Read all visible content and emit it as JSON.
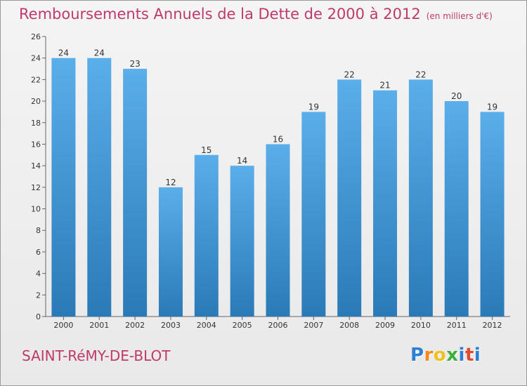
{
  "header": {
    "title": "Remboursements Annuels de la Dette de 2000 à 2012",
    "subtitle": "(en milliers d'€)"
  },
  "footer": {
    "commune": "SAINT-RéMY-DE-BLOT",
    "logo_letters": [
      "P",
      "r",
      "o",
      "x",
      "i",
      "t",
      "i"
    ],
    "logo_colors": [
      "#2f7fd0",
      "#f28a1e",
      "#f0c020",
      "#3fae3a",
      "#2f7fd0",
      "#e24a30",
      "#2f7fd0"
    ]
  },
  "chart_data": {
    "type": "bar",
    "title": "Remboursements Annuels de la Dette de 2000 à 2012",
    "subtitle": "(en milliers d'€)",
    "categories": [
      "2000",
      "2001",
      "2002",
      "2003",
      "2004",
      "2005",
      "2006",
      "2007",
      "2008",
      "2009",
      "2010",
      "2011",
      "2012"
    ],
    "values": [
      24,
      24,
      23,
      12,
      15,
      14,
      16,
      19,
      22,
      21,
      22,
      20,
      19
    ],
    "ylim": [
      0,
      26
    ],
    "yticks": [
      0,
      2,
      4,
      6,
      8,
      10,
      12,
      14,
      16,
      18,
      20,
      22,
      24,
      26
    ],
    "grid": false,
    "bar_color_top": "#5aaeea",
    "bar_color_bottom": "#2a7ab8"
  }
}
